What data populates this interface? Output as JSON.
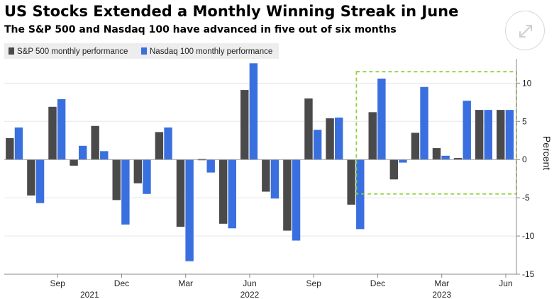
{
  "header": {
    "title": "US Stocks Extended a Monthly Winning Streak in June",
    "subtitle": "The S&P 500 and Nasdaq 100 have advanced in five out of six months"
  },
  "controls": {
    "expand_icon": "expand-arrows-icon"
  },
  "colors": {
    "sp500": "#4a4a4a",
    "nasdaq": "#3a6fe0",
    "highlight": "#8fd13b",
    "axis": "#8a8a8a"
  },
  "chart_data": {
    "type": "bar",
    "categories": [
      "Jul 2021",
      "Aug 2021",
      "Sep 2021",
      "Oct 2021",
      "Nov 2021",
      "Dec 2021",
      "Jan 2022",
      "Feb 2022",
      "Mar 2022",
      "Apr 2022",
      "May 2022",
      "Jun 2022",
      "Jul 2022",
      "Aug 2022",
      "Sep 2022",
      "Oct 2022",
      "Nov 2022",
      "Dec 2022",
      "Jan 2023",
      "Feb 2023",
      "Mar 2023",
      "Apr 2023",
      "May 2023",
      "Jun 2023"
    ],
    "series": [
      {
        "name": "S&P 500 monthly performance",
        "values": [
          2.8,
          -4.7,
          6.9,
          -0.8,
          4.4,
          -5.3,
          -3.1,
          3.6,
          -8.8,
          0.0,
          -8.4,
          9.1,
          -4.2,
          -9.3,
          8.0,
          5.4,
          -5.9,
          6.2,
          -2.6,
          3.5,
          1.5,
          0.2,
          6.5,
          6.5
        ]
      },
      {
        "name": "Nasdaq 100 monthly performance",
        "values": [
          4.2,
          -5.7,
          7.9,
          1.8,
          1.1,
          -8.5,
          -4.5,
          4.2,
          -13.3,
          -1.7,
          -9.0,
          12.6,
          -5.1,
          -10.6,
          3.9,
          5.5,
          -9.1,
          10.6,
          -0.4,
          9.5,
          0.5,
          7.7,
          6.5,
          6.5
        ]
      }
    ],
    "x_tick_labels": [
      {
        "label": "Sep",
        "index": 2
      },
      {
        "label": "Dec",
        "index": 5
      },
      {
        "label": "Mar",
        "index": 8
      },
      {
        "label": "Jun",
        "index": 11
      },
      {
        "label": "Sep",
        "index": 14
      },
      {
        "label": "Dec",
        "index": 17
      },
      {
        "label": "Mar",
        "index": 20
      },
      {
        "label": "Jun",
        "index": 23
      }
    ],
    "year_labels": [
      {
        "label": "2021",
        "index": 3.5
      },
      {
        "label": "2022",
        "index": 11
      },
      {
        "label": "2023",
        "index": 20
      }
    ],
    "y_ticks": [
      10,
      5,
      0,
      -5,
      -10,
      -15
    ],
    "y_tick_labels": [
      "10",
      "5",
      "0",
      "-5",
      "-10",
      "-15"
    ],
    "ylim": [
      -15,
      13
    ],
    "ylabel": "Percent",
    "xlabel": "",
    "legend_position": "top-left",
    "highlight_box": {
      "x_from_index": 16.5,
      "x_to": "right-edge",
      "y_top": 11.5,
      "y_bottom": -4.5
    }
  }
}
